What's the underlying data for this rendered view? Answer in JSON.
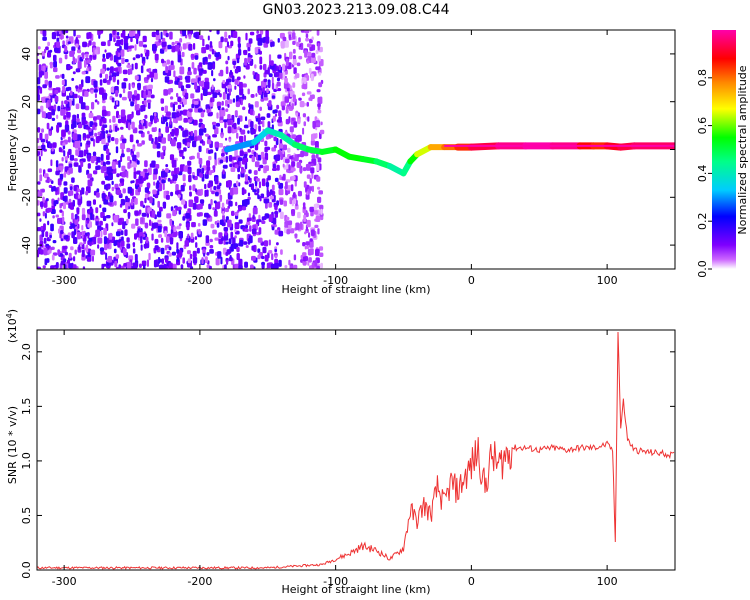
{
  "title": "GN03.2023.213.09.08.C44",
  "chart_data": [
    {
      "type": "heatmap",
      "xlabel": "Height of straight line (km)",
      "ylabel": "Frequency (Hz)",
      "xlim": [
        -320,
        150
      ],
      "ylim": [
        -50,
        50
      ],
      "x_ticks": [
        -300,
        -200,
        -100,
        0,
        100
      ],
      "y_ticks": [
        -40,
        -20,
        0,
        20,
        40
      ],
      "x_tick_labels": [
        "-300",
        "-200",
        "-100",
        "0",
        "100"
      ],
      "y_tick_labels": [
        "-40",
        "-20",
        "0",
        "20",
        "40"
      ],
      "colorbar": {
        "label": "Normalized spectral amplitude",
        "range": [
          0.0,
          1.0
        ],
        "ticks": [
          0.0,
          0.2,
          0.4,
          0.6,
          0.8
        ],
        "tick_labels": [
          "0.0",
          "0.2",
          "0.4",
          "0.6",
          "0.8"
        ]
      },
      "trace": {
        "x": [
          -180,
          -160,
          -150,
          -140,
          -130,
          -120,
          -110,
          -100,
          -90,
          -80,
          -70,
          -60,
          -50,
          -45,
          -40,
          -30,
          -20,
          -10,
          0,
          20,
          40,
          60,
          80,
          90,
          100,
          110,
          120,
          150
        ],
        "y": [
          0,
          3,
          8,
          6,
          2,
          0,
          -1,
          0,
          -3,
          -4,
          -5,
          -7,
          -10,
          -5,
          -2,
          1,
          1,
          1,
          1,
          1.5,
          1.5,
          1.5,
          1.5,
          1.5,
          1.5,
          1,
          1.5,
          1.5
        ],
        "amplitude": [
          0.3,
          0.3,
          0.4,
          0.4,
          0.45,
          0.5,
          0.5,
          0.55,
          0.55,
          0.55,
          0.5,
          0.45,
          0.4,
          0.5,
          0.6,
          0.7,
          0.8,
          0.8,
          0.9,
          0.95,
          1.0,
          1.0,
          0.95,
          0.8,
          0.9,
          0.9,
          0.95,
          0.95
        ]
      }
    },
    {
      "type": "line",
      "xlabel": "Height of straight line (km)",
      "ylabel": "SNR (10 * v/v)",
      "y_multiplier_label": "(x10",
      "y_multiplier_exp": "4",
      "y_multiplier_close": ")",
      "xlim": [
        -320,
        150
      ],
      "ylim": [
        0,
        2.2
      ],
      "x_ticks": [
        -300,
        -200,
        -100,
        0,
        100
      ],
      "y_ticks": [
        0.0,
        0.5,
        1.0,
        1.5,
        2.0
      ],
      "x_tick_labels": [
        "-300",
        "-200",
        "-100",
        "0",
        "100"
      ],
      "y_tick_labels": [
        "0.0",
        "0.5",
        "1.0",
        "1.5",
        "2.0"
      ],
      "color": "#ee3333",
      "series": [
        {
          "x": [
            -320,
            -250,
            -200,
            -150,
            -110,
            -100,
            -90,
            -80,
            -70,
            -60,
            -50,
            -45,
            -40,
            -35,
            -30,
            -25,
            -20,
            -15,
            -10,
            -5,
            0,
            5,
            10,
            15,
            20,
            25,
            30,
            40,
            50,
            60,
            70,
            80,
            90,
            100,
            104,
            106,
            108,
            110,
            112,
            115,
            120,
            130,
            140,
            150
          ],
          "y": [
            0.02,
            0.02,
            0.02,
            0.02,
            0.05,
            0.1,
            0.15,
            0.22,
            0.18,
            0.1,
            0.2,
            0.55,
            0.45,
            0.6,
            0.5,
            0.75,
            0.6,
            0.8,
            0.72,
            0.85,
            0.95,
            1.1,
            0.75,
            1.05,
            0.95,
            1.05,
            1.12,
            1.12,
            1.1,
            1.12,
            1.1,
            1.12,
            1.12,
            1.15,
            1.1,
            0.25,
            2.2,
            1.3,
            1.55,
            1.2,
            1.1,
            1.08,
            1.07,
            1.05
          ]
        }
      ]
    }
  ]
}
